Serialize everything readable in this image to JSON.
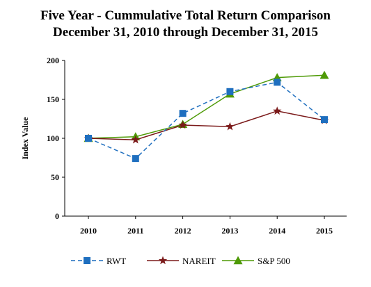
{
  "chart_data": {
    "type": "line",
    "title": "Five Year - Cummulative Total Return Comparison",
    "subtitle": "December 31, 2010 through December 31, 2015",
    "xlabel": "",
    "ylabel": "Index Value",
    "categories": [
      "2010",
      "2011",
      "2012",
      "2013",
      "2014",
      "2015"
    ],
    "ylim": [
      0,
      200
    ],
    "yticks": [
      "0",
      "50",
      "100",
      "150",
      "200"
    ],
    "grid": false,
    "legend_position": "bottom",
    "series": [
      {
        "name": "RWT",
        "values": [
          100,
          74,
          132,
          160,
          172,
          124
        ],
        "color": "#1f6fbf",
        "dash": "dashed",
        "marker": "square"
      },
      {
        "name": "NAREIT",
        "values": [
          100,
          98,
          117,
          115,
          135,
          123
        ],
        "color": "#7b1a1a",
        "dash": "solid",
        "marker": "star"
      },
      {
        "name": "S&P 500",
        "values": [
          100,
          102,
          118,
          157,
          178,
          181
        ],
        "color": "#4e9a06",
        "dash": "solid",
        "marker": "triangle"
      }
    ]
  }
}
